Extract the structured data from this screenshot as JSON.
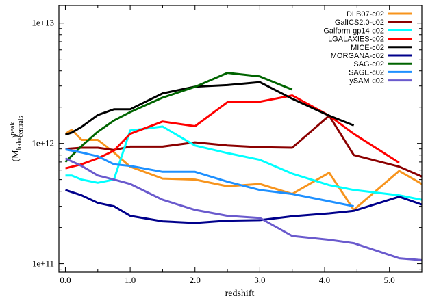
{
  "chart_data": {
    "type": "line",
    "xlabel": "redshift",
    "ylabel_base": "(M",
    "ylabel_sub": "halo",
    "ylabel_close": ")",
    "ylabel_sup": "peak",
    "ylabel_sub2": "centrals",
    "xlim": [
      -0.1,
      5.5
    ],
    "ylim": [
      85000000000,
      14000000000000
    ],
    "log_y": true,
    "legend_position": "top-right",
    "x_ticks": [
      0,
      1,
      2,
      3,
      4,
      5
    ],
    "x_tick_labels": [
      "0.0",
      "1.0",
      "2.0",
      "3.0",
      "4.0",
      "5.0"
    ],
    "y_ticks": [
      100000000000,
      1000000000000,
      10000000000000
    ],
    "y_tick_labels": [
      "1e+11",
      "1e+12",
      "1e+13"
    ],
    "series": [
      {
        "name": "DLB07-c02",
        "color": "#f7941d",
        "x": [
          0.0,
          0.1,
          0.25,
          0.5,
          0.75,
          1.0,
          1.5,
          2.0,
          2.5,
          3.0,
          3.5,
          4.07,
          4.45,
          5.15,
          5.5
        ],
        "y": [
          1200000000000,
          1300000000000,
          1070000000000,
          1070000000000,
          840000000000,
          640000000000,
          510000000000,
          500000000000,
          440000000000,
          460000000000,
          380000000000,
          570000000000,
          280000000000,
          590000000000,
          460000000000
        ]
      },
      {
        "name": "GalICS2.0-c02",
        "color": "#8b0000",
        "x": [
          0.0,
          0.25,
          0.5,
          0.75,
          1.0,
          1.5,
          2.0,
          2.5,
          3.0,
          3.5,
          4.07,
          4.45,
          5.15,
          5.5
        ],
        "y": [
          900000000000,
          920000000000,
          920000000000,
          880000000000,
          940000000000,
          940000000000,
          1020000000000,
          960000000000,
          930000000000,
          920000000000,
          1700000000000,
          800000000000,
          640000000000,
          530000000000
        ]
      },
      {
        "name": "Galform-gp14-c02",
        "color": "#00ffff",
        "x": [
          0.0,
          0.1,
          0.25,
          0.5,
          0.75,
          1.0,
          1.5,
          2.0,
          2.5,
          3.0,
          3.5,
          4.07,
          4.45,
          5.15,
          5.5
        ],
        "y": [
          540000000000,
          540000000000,
          500000000000,
          470000000000,
          500000000000,
          1280000000000,
          1380000000000,
          960000000000,
          830000000000,
          730000000000,
          560000000000,
          450000000000,
          410000000000,
          370000000000,
          340000000000
        ]
      },
      {
        "name": "LGALAXIES-c02",
        "color": "#ff0000",
        "x": [
          0.0,
          0.25,
          0.5,
          0.75,
          1.0,
          1.5,
          2.0,
          2.5,
          3.0,
          3.5,
          4.07,
          4.45,
          5.15
        ],
        "y": [
          620000000000,
          670000000000,
          750000000000,
          870000000000,
          1200000000000,
          1520000000000,
          1390000000000,
          2200000000000,
          2220000000000,
          2500000000000,
          1700000000000,
          1200000000000,
          690000000000
        ]
      },
      {
        "name": "MICE-c02",
        "color": "#000000",
        "x": [
          0.0,
          0.1,
          0.25,
          0.5,
          0.75,
          1.0,
          1.5,
          2.0,
          2.5,
          3.0,
          3.5,
          4.07,
          4.45
        ],
        "y": [
          1180000000000,
          1230000000000,
          1370000000000,
          1720000000000,
          1920000000000,
          1920000000000,
          2600000000000,
          2960000000000,
          3050000000000,
          3230000000000,
          2350000000000,
          1700000000000,
          1410000000000
        ]
      },
      {
        "name": "MORGANA-c02",
        "color": "#00008b",
        "x": [
          0.0,
          0.25,
          0.5,
          0.75,
          1.0,
          1.5,
          2.0,
          2.5,
          3.0,
          3.5,
          4.07,
          4.45,
          5.15,
          5.5
        ],
        "y": [
          410000000000,
          370000000000,
          320000000000,
          300000000000,
          250000000000,
          225000000000,
          218000000000,
          228000000000,
          230000000000,
          248000000000,
          262000000000,
          275000000000,
          360000000000,
          310000000000
        ]
      },
      {
        "name": "SAG-c02",
        "color": "#006400",
        "x": [
          0.0,
          0.25,
          0.5,
          0.75,
          1.0,
          1.5,
          2.0,
          2.5,
          3.0,
          3.5
        ],
        "y": [
          700000000000,
          950000000000,
          1250000000000,
          1550000000000,
          1820000000000,
          2400000000000,
          2950000000000,
          3850000000000,
          3600000000000,
          2800000000000
        ]
      },
      {
        "name": "SAGE-c02",
        "color": "#1e90ff",
        "x": [
          0.0,
          0.25,
          0.5,
          0.75,
          1.0,
          1.5,
          2.0,
          2.5,
          3.0,
          3.5,
          4.07,
          4.45
        ],
        "y": [
          890000000000,
          840000000000,
          780000000000,
          670000000000,
          650000000000,
          580000000000,
          580000000000,
          480000000000,
          410000000000,
          380000000000,
          330000000000,
          300000000000
        ]
      },
      {
        "name": "ySAM-c02",
        "color": "#6a5acd",
        "x": [
          0.0,
          0.25,
          0.5,
          0.75,
          1.0,
          1.5,
          2.0,
          2.5,
          3.0,
          3.5,
          4.07,
          4.45,
          5.15,
          5.5
        ],
        "y": [
          750000000000,
          650000000000,
          540000000000,
          500000000000,
          460000000000,
          340000000000,
          280000000000,
          250000000000,
          240000000000,
          170000000000,
          158000000000,
          148000000000,
          111000000000,
          107000000000
        ]
      }
    ]
  }
}
